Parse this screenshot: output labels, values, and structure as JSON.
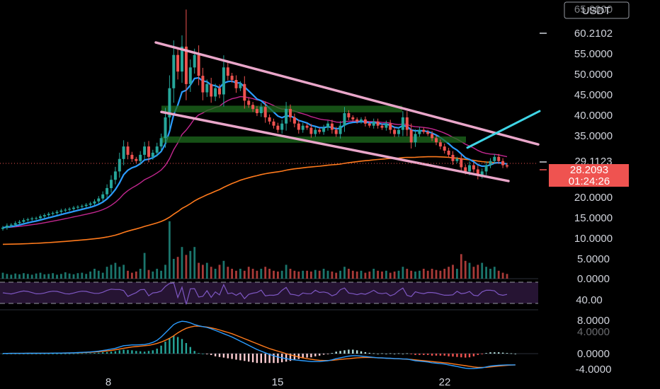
{
  "chart_data": [
    {
      "type": "candlestick",
      "currency": "USDT",
      "x_ticks": [
        "8",
        "15",
        "22"
      ],
      "y_ticks": [
        "65.0000",
        "60.2102",
        "55.0000",
        "50.0000",
        "45.0000",
        "40.0000",
        "35.0000",
        "29.1123",
        "28.2093",
        "01:24:26",
        "20.0000",
        "15.0000",
        "10.0000",
        "5.0000"
      ],
      "price_labels": {
        "high_marker": "60.2102",
        "reference": "29.1123",
        "last_price": "28.2093",
        "countdown": "01:24:26"
      },
      "close_series": [
        13.5,
        14.0,
        14.2,
        14.6,
        14.9,
        15.3,
        15.5,
        15.7,
        15.8,
        16.2,
        16.5,
        16.8,
        17.0,
        17.3,
        17.6,
        17.8,
        18.0,
        18.3,
        18.5,
        18.7,
        19.0,
        19.3,
        19.8,
        20.5,
        21.5,
        23.0,
        25.0,
        27.0,
        30.0,
        33.0,
        31.0,
        30.0,
        29.5,
        31.0,
        33.0,
        30.5,
        31.5,
        33.0,
        35.0,
        40.0,
        47.0,
        55.0,
        51.0,
        57.0,
        48.0,
        52.0,
        55.0,
        50.0,
        46.0,
        48.0,
        45.0,
        47.0,
        45.5,
        52.0,
        50.0,
        49.0,
        47.0,
        48.0,
        44.0,
        43.0,
        42.0,
        41.0,
        42.5,
        40.0,
        39.0,
        38.0,
        37.0,
        38.5,
        42.0,
        40.0,
        38.5,
        37.0,
        38.0,
        37.5,
        36.0,
        37.0,
        36.5,
        37.5,
        38.5,
        37.0,
        36.0,
        38.0,
        41.0,
        40.0,
        39.5,
        39.0,
        39.5,
        38.5,
        38.0,
        39.0,
        38.0,
        37.5,
        38.5,
        37.0,
        36.0,
        37.0,
        40.0,
        37.0,
        34.0,
        36.0,
        37.0,
        36.5,
        36.0,
        35.0,
        34.0,
        33.0,
        32.0,
        31.0,
        29.5,
        30.0,
        28.0,
        27.0,
        28.5,
        27.5,
        26.0,
        27.0,
        28.5,
        29.5,
        30.5,
        29.5,
        28.5,
        28.2
      ],
      "overlays": [
        "ema-fast",
        "ma-mid",
        "ma-slow",
        "descending-channel",
        "support-zones",
        "breakout-arrow"
      ]
    },
    {
      "type": "bar",
      "panel": "volume",
      "y_ticks": [
        "5.0000",
        "0.0000"
      ],
      "values": [
        1.5,
        1.2,
        1.0,
        1.3,
        1.1,
        1.4,
        1.2,
        1.0,
        1.3,
        1.5,
        1.1,
        1.2,
        1.4,
        1.0,
        1.2,
        1.6,
        1.3,
        1.1,
        1.4,
        1.5,
        1.2,
        1.8,
        2.5,
        2.0,
        1.5,
        3.0,
        3.5,
        4.0,
        3.0,
        3.5,
        2.0,
        1.5,
        1.8,
        2.5,
        2.0,
        2.2,
        1.8,
        2.5,
        2.0,
        3.5,
        4.0,
        5.0,
        5.5,
        8.0,
        6.0,
        7.0,
        5.0,
        4.0,
        3.5,
        4.0,
        3.0,
        2.5,
        3.5,
        4.5,
        3.0,
        2.5,
        2.0,
        2.5,
        2.0,
        3.0,
        2.5,
        2.0,
        2.5,
        3.0,
        2.5,
        2.0,
        1.8,
        2.0,
        3.5,
        2.5,
        2.0,
        1.8,
        2.0,
        2.0,
        1.8,
        2.2,
        2.0,
        2.5,
        2.0,
        1.8,
        1.5,
        2.0,
        3.0,
        2.5,
        2.0,
        1.8,
        2.0,
        1.5,
        1.8,
        2.5,
        2.0,
        1.8,
        2.0,
        1.5,
        1.8,
        2.0,
        3.0,
        2.5,
        2.0,
        1.8,
        2.0,
        2.5,
        2.0,
        2.5,
        2.2,
        2.0,
        2.5,
        3.0,
        3.5,
        2.5,
        6.0,
        4.5,
        4.0,
        3.0,
        3.5,
        4.0,
        3.0,
        2.5,
        3.0,
        2.0,
        1.5,
        1.2
      ],
      "spikes": [
        {
          "index": 40,
          "value": 14.5
        },
        {
          "index": 34,
          "value": 6.5
        },
        {
          "index": 46,
          "value": 8.0
        },
        {
          "index": 110,
          "value": 6.2
        }
      ]
    },
    {
      "type": "line",
      "panel": "rsi-band",
      "y_ticks": [
        "40.00"
      ],
      "band_lines": [
        "upper-dashed",
        "lower-dashed"
      ]
    },
    {
      "type": "line",
      "panel": "macd",
      "y_ticks": [
        "8.0000",
        "4.0000",
        "0.0000",
        "-4.0000"
      ],
      "macd_series": [
        0.05,
        0.05,
        0.06,
        0.06,
        0.07,
        0.07,
        0.08,
        0.08,
        0.09,
        0.1,
        0.1,
        0.11,
        0.12,
        0.13,
        0.14,
        0.15,
        0.17,
        0.2,
        0.25,
        0.3,
        0.35,
        0.4,
        0.5,
        0.6,
        0.75,
        0.9,
        1.1,
        1.3,
        1.6,
        1.9,
        2.0,
        2.1,
        2.1,
        2.15,
        2.2,
        2.4,
        2.7,
        3.2,
        4.0,
        5.0,
        6.0,
        7.0,
        7.5,
        7.8,
        7.7,
        7.4,
        7.0,
        6.7,
        6.5,
        6.3,
        6.0,
        5.6,
        5.2,
        4.8,
        4.4,
        4.0,
        3.5,
        3.0,
        2.5,
        2.0,
        1.5,
        1.0,
        0.6,
        0.2,
        -0.2,
        -0.5,
        -0.8,
        -1.0,
        -1.2,
        -1.4,
        -1.5,
        -1.6,
        -1.7,
        -1.8,
        -1.9,
        -1.9,
        -1.9,
        -1.8,
        -1.7,
        -1.5,
        -1.2,
        -1.0,
        -0.8,
        -0.6,
        -0.5,
        -0.5,
        -0.6,
        -0.7,
        -0.8,
        -0.9,
        -1.0,
        -1.0,
        -1.1,
        -1.1,
        -1.2,
        -1.2,
        -1.3,
        -1.3,
        -1.5,
        -1.7,
        -1.8,
        -1.9,
        -2.0,
        -2.2,
        -2.3,
        -2.4,
        -2.5,
        -2.7,
        -2.9,
        -3.1,
        -3.3,
        -3.5,
        -3.6,
        -3.6,
        -3.5,
        -3.4,
        -3.2,
        -3.0,
        -2.9,
        -2.8,
        -2.75,
        -2.7,
        -2.7,
        -2.7
      ],
      "signal_series": [
        0.05,
        0.05,
        0.06,
        0.06,
        0.07,
        0.07,
        0.08,
        0.08,
        0.09,
        0.1,
        0.1,
        0.11,
        0.12,
        0.13,
        0.14,
        0.15,
        0.16,
        0.18,
        0.21,
        0.25,
        0.29,
        0.33,
        0.39,
        0.46,
        0.55,
        0.66,
        0.79,
        0.94,
        1.1,
        1.3,
        1.45,
        1.6,
        1.7,
        1.8,
        1.9,
        2.0,
        2.2,
        2.45,
        2.8,
        3.2,
        3.7,
        4.3,
        5.0,
        5.6,
        6.1,
        6.4,
        6.6,
        6.6,
        6.5,
        6.4,
        6.2,
        6.0,
        5.7,
        5.4,
        5.1,
        4.8,
        4.4,
        4.0,
        3.6,
        3.2,
        2.8,
        2.4,
        2.0,
        1.6,
        1.2,
        0.9,
        0.6,
        0.3,
        0.0,
        -0.3,
        -0.55,
        -0.8,
        -1.0,
        -1.2,
        -1.35,
        -1.5,
        -1.6,
        -1.65,
        -1.65,
        -1.6,
        -1.5,
        -1.4,
        -1.3,
        -1.2,
        -1.1,
        -1.0,
        -0.95,
        -0.92,
        -0.92,
        -0.95,
        -1.0,
        -1.05,
        -1.1,
        -1.15,
        -1.2,
        -1.25,
        -1.3,
        -1.35,
        -1.4,
        -1.5,
        -1.6,
        -1.7,
        -1.8,
        -1.9,
        -2.0,
        -2.1,
        -2.2,
        -2.3,
        -2.45,
        -2.6,
        -2.75,
        -2.9,
        -3.05,
        -3.2,
        -3.3,
        -3.3,
        -3.3,
        -3.2,
        -3.1,
        -3.0,
        -2.9,
        -2.8,
        -2.75,
        -2.7
      ]
    }
  ],
  "colors": {
    "up": "#26a69a",
    "down": "#ef5350",
    "ema_fast": "#2b9cff",
    "ma_mid": "#c2278f",
    "ma_slow": "#ff7a1c",
    "channel": "#e9a6c9",
    "support": "#1e6b1e",
    "arrow": "#3fd5e6",
    "rsi": "#7e57c2"
  }
}
